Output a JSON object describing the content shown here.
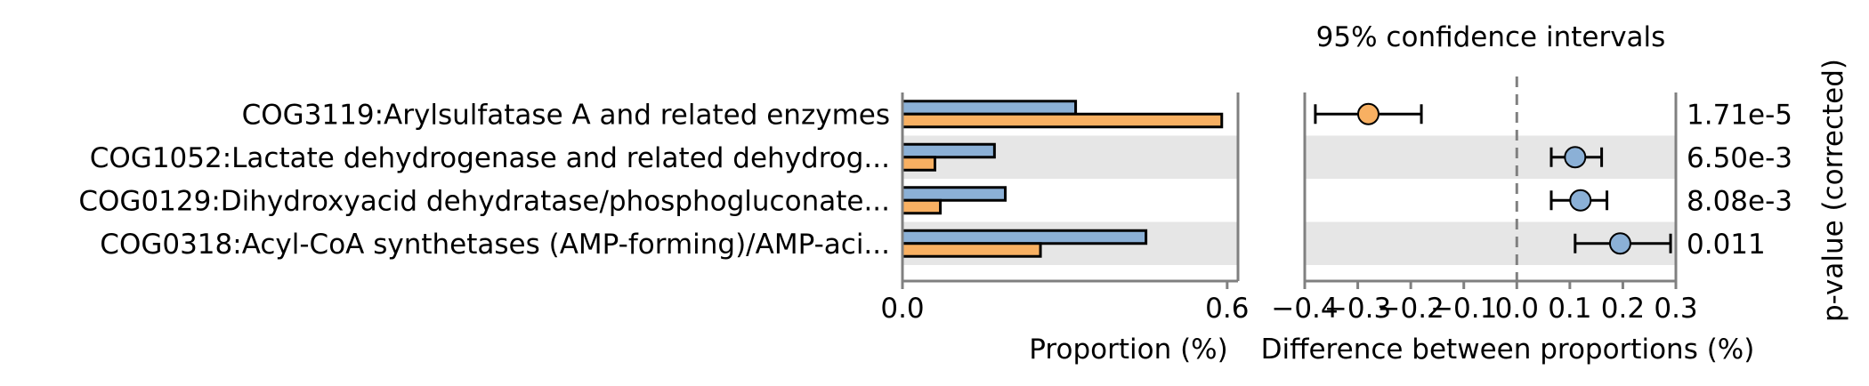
{
  "chart_data": [
    {
      "type": "bar",
      "orientation": "horizontal",
      "categories": [
        "COG3119:Arylsulfatase A and related enzymes",
        "COG1052:Lactate dehydrogenase and related dehydrog...",
        "COG0129:Dihydroxyacid dehydratase/phosphogluconate...",
        "COG0318:Acyl-CoA synthetases (AMP-forming)/AMP-aci..."
      ],
      "series": [
        {
          "values": [
            0.32,
            0.17,
            0.19,
            0.45
          ],
          "color": "#8bb0d6"
        },
        {
          "values": [
            0.59,
            0.06,
            0.07,
            0.255
          ],
          "color": "#f8b062"
        }
      ],
      "xlabel": "Proportion (%)",
      "xlim": [
        0.0,
        0.62
      ],
      "xticks": [
        "0.0",
        "0.6"
      ],
      "xtick_values": [
        0.0,
        0.6
      ]
    },
    {
      "type": "scatter",
      "subtype": "confidence-interval",
      "title": "95% confidence intervals",
      "points": [
        {
          "diff": -0.28,
          "low": -0.38,
          "high": -0.18,
          "color": "#f8b062"
        },
        {
          "diff": 0.11,
          "low": 0.065,
          "high": 0.16,
          "color": "#8bb0d6"
        },
        {
          "diff": 0.12,
          "low": 0.065,
          "high": 0.17,
          "color": "#8bb0d6"
        },
        {
          "diff": 0.195,
          "low": 0.11,
          "high": 0.29,
          "color": "#8bb0d6"
        }
      ],
      "xlabel": "Difference between proportions (%)",
      "xlim": [
        -0.4,
        0.3
      ],
      "xticks": [
        "−0.4",
        "−0.3",
        "−0.2",
        "−0.1",
        "0.0",
        "0.1",
        "0.2",
        "0.3"
      ],
      "xtick_values": [
        -0.4,
        -0.3,
        -0.2,
        -0.1,
        0.0,
        0.1,
        0.2,
        0.3
      ],
      "reference_line": 0.0,
      "pvalues": [
        "1.71e-5",
        "6.50e-3",
        "8.08e-3",
        "0.011"
      ],
      "pvalue_label": "p-value (corrected)"
    }
  ]
}
